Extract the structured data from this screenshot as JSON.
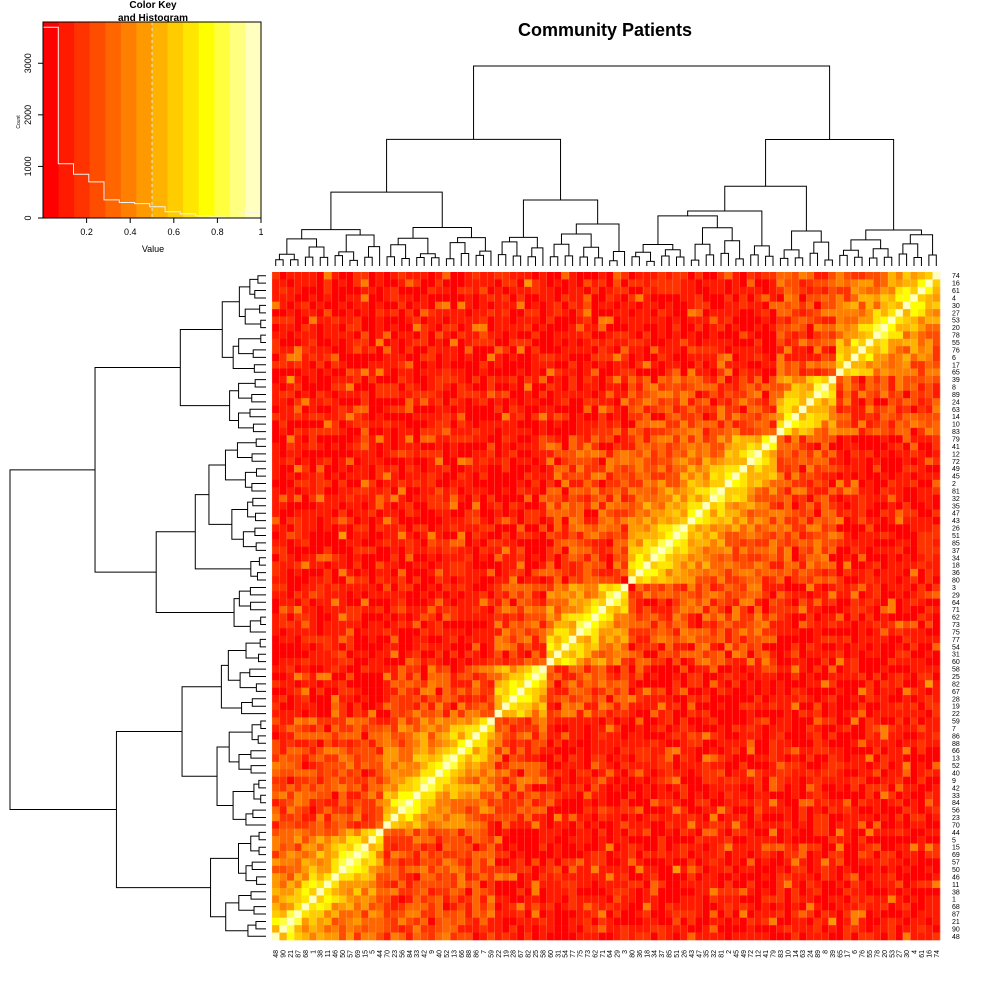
{
  "title": "Community Patients",
  "color_key": {
    "title_line1": "Color Key",
    "title_line2": "and Histogram",
    "xlabel": "Value",
    "ylabel": "Count",
    "x_ticks": [
      "0.2",
      "0.4",
      "0.6",
      "0.8",
      "1"
    ],
    "y_ticks": [
      "0",
      "1000",
      "2000",
      "3000"
    ],
    "colors": [
      "#ff0000",
      "#ff1a00",
      "#ff3300",
      "#ff4d00",
      "#ff6600",
      "#ff8000",
      "#ff9900",
      "#ffb300",
      "#ffcc00",
      "#ffe600",
      "#ffff00",
      "#ffff40",
      "#ffff80",
      "#ffffbf"
    ]
  },
  "chart_data": {
    "type": "heatmap",
    "title": "Community Patients",
    "value_range": [
      0,
      1
    ],
    "histogram": {
      "bin_edges": [
        0.0,
        0.07,
        0.14,
        0.21,
        0.28,
        0.35,
        0.42,
        0.49,
        0.56,
        0.63,
        0.7,
        0.77,
        0.84,
        0.91,
        1.0
      ],
      "counts": [
        3700,
        1050,
        850,
        700,
        350,
        300,
        280,
        220,
        120,
        80,
        40,
        20,
        10,
        100
      ],
      "ylim": [
        0,
        3800
      ]
    },
    "density_line_value": 0.5,
    "row_labels": [
      "74",
      "16",
      "61",
      "4",
      "30",
      "27",
      "53",
      "20",
      "78",
      "55",
      "76",
      "6",
      "17",
      "65",
      "39",
      "8",
      "89",
      "24",
      "63",
      "14",
      "10",
      "83",
      "79",
      "41",
      "12",
      "72",
      "49",
      "45",
      "2",
      "81",
      "32",
      "35",
      "47",
      "43",
      "26",
      "51",
      "85",
      "37",
      "34",
      "18",
      "36",
      "80",
      "3",
      "29",
      "64",
      "71",
      "62",
      "73",
      "75",
      "77",
      "54",
      "31",
      "60",
      "58",
      "25",
      "82",
      "67",
      "28",
      "19",
      "22",
      "59",
      "7",
      "86",
      "88",
      "66",
      "13",
      "52",
      "40",
      "9",
      "42",
      "33",
      "84",
      "56",
      "23",
      "70",
      "44",
      "5",
      "15",
      "69",
      "57",
      "50",
      "46",
      "11",
      "38",
      "1",
      "68",
      "87",
      "21",
      "90",
      "48"
    ],
    "col_labels": [
      "48",
      "90",
      "21",
      "87",
      "68",
      "1",
      "38",
      "11",
      "46",
      "50",
      "57",
      "69",
      "15",
      "5",
      "44",
      "70",
      "23",
      "56",
      "84",
      "33",
      "42",
      "9",
      "40",
      "52",
      "13",
      "66",
      "88",
      "86",
      "7",
      "59",
      "22",
      "19",
      "28",
      "67",
      "82",
      "25",
      "58",
      "60",
      "31",
      "54",
      "77",
      "75",
      "73",
      "62",
      "71",
      "64",
      "29",
      "3",
      "80",
      "36",
      "18",
      "34",
      "37",
      "85",
      "51",
      "26",
      "43",
      "47",
      "35",
      "32",
      "81",
      "2",
      "45",
      "49",
      "72",
      "12",
      "41",
      "79",
      "83",
      "10",
      "14",
      "63",
      "24",
      "89",
      "8",
      "39",
      "65",
      "17",
      "6",
      "76",
      "55",
      "78",
      "20",
      "53",
      "27",
      "30",
      "4",
      "61",
      "16",
      "74"
    ],
    "row_clusters": [
      14,
      8,
      20,
      7,
      11,
      15,
      15
    ],
    "col_clusters": [
      15,
      15,
      7,
      11,
      20,
      8,
      14
    ],
    "diagonal_value": 1.0
  }
}
